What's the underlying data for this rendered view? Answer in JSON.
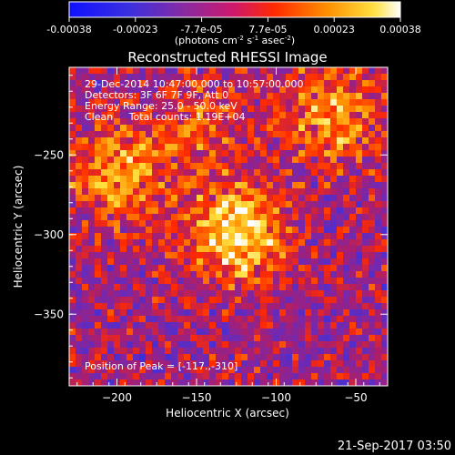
{
  "colorbar": {
    "ticks": [
      "-0.00038",
      "-0.00023",
      "-7.7e-05",
      "7.7e-05",
      "0.00023",
      "0.00038"
    ],
    "units_prefix": "(photons cm",
    "units_exp1": "-2",
    "units_mid": " s",
    "units_exp2": "-1",
    "units_mid2": " asec",
    "units_exp3": "-2",
    "units_suffix": ")"
  },
  "annotations": {
    "line1": "29-Dec-2014 10:47:00.000 to 10:57:00.000",
    "line2": "Detectors: 3F 6F 7F 9F, Att 0",
    "line3": "Energy Range: 25.0 - 50.0 keV",
    "line4": "Clean     Total counts: 1.19E+04",
    "peak": "Position of Peak = [-117.,-310]"
  },
  "footer": {
    "timestamp": "21-Sep-2017 03:50"
  },
  "colors": {
    "background": "#000000",
    "axes": "#ffffff",
    "colormap": [
      "#1a1aff",
      "#7a3ab8",
      "#c0206a",
      "#ff2a00",
      "#ff9a00",
      "#ffe040",
      "#ffffff"
    ]
  },
  "chart_data": {
    "type": "heatmap",
    "title": "Reconstructed RHESSI Image",
    "xlabel": "Heliocentric X (arcsec)",
    "ylabel": "Heliocentric Y (arcsec)",
    "xlim": [
      -230,
      -30
    ],
    "ylim": [
      -395,
      -195
    ],
    "xticks": [
      -200,
      -150,
      -100,
      -50
    ],
    "yticks": [
      -250,
      -300,
      -350
    ],
    "colorbar_range": [
      -0.00038,
      0.00038
    ],
    "peak_position": [
      -117,
      -310
    ],
    "grid": false,
    "sources": [
      {
        "x": -125,
        "y": -300,
        "peak": 0.00038
      },
      {
        "x": -200,
        "y": -262,
        "peak": 0.00027
      },
      {
        "x": -65,
        "y": -225,
        "peak": 0.00026
      },
      {
        "x": -150,
        "y": -232,
        "peak": 0.00015
      }
    ]
  }
}
